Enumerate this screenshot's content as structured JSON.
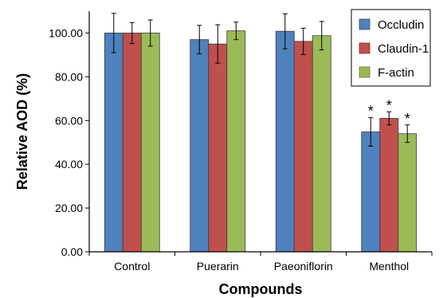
{
  "chart_data": {
    "type": "bar",
    "title": "",
    "xlabel": "Compounds",
    "ylabel": "Relative AOD (%)",
    "ylim": [
      0,
      110
    ],
    "yticks": [
      "0.00",
      "20.00",
      "40.00",
      "60.00",
      "80.00",
      "100.00"
    ],
    "grid": false,
    "legend_position": "top-right",
    "categories": [
      "Control",
      "Puerarin",
      "Paeoniflorin",
      "Menthol"
    ],
    "series": [
      {
        "name": "Occludin",
        "color": "#4f81bd",
        "values": [
          100.0,
          97.0,
          100.8,
          54.8
        ],
        "errors": [
          9.0,
          6.5,
          8.0,
          6.5
        ]
      },
      {
        "name": "Claudin-1",
        "color": "#c0504d",
        "values": [
          100.0,
          95.0,
          96.2,
          61.0
        ],
        "errors": [
          4.8,
          8.8,
          6.0,
          3.0
        ]
      },
      {
        "name": "F-actin",
        "color": "#9bbb59",
        "values": [
          100.0,
          101.0,
          98.8,
          54.0
        ],
        "errors": [
          6.0,
          4.0,
          6.5,
          4.0
        ]
      }
    ],
    "annotations": [
      {
        "category": "Menthol",
        "series": "Occludin",
        "text": "*"
      },
      {
        "category": "Menthol",
        "series": "Claudin-1",
        "text": "*"
      },
      {
        "category": "Menthol",
        "series": "F-actin",
        "text": "*"
      }
    ]
  }
}
